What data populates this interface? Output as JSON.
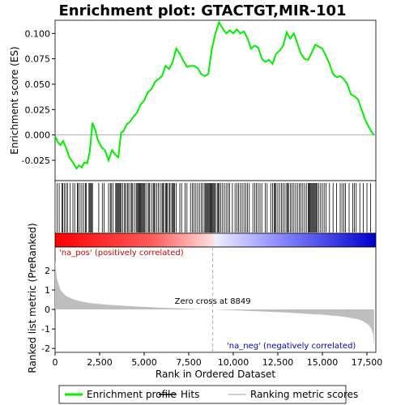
{
  "chart_data": {
    "type": "line",
    "title": "Enrichment plot: GTACTGT,MIR-101",
    "xlabel": "Rank in Ordered Dataset",
    "ylabel_top": "Enrichment score (ES)",
    "ylabel_bottom": "Ranked list metric (PreRanked)",
    "xlim": [
      0,
      18000
    ],
    "x_ticks": [
      0,
      2500,
      5000,
      7500,
      10000,
      12500,
      15000,
      17500
    ],
    "x_tick_labels": [
      "0",
      "2,500",
      "5,000",
      "7,500",
      "10,000",
      "12,500",
      "15,000",
      "17,500"
    ],
    "es_ylim": [
      -0.045,
      0.113
    ],
    "es_ticks": [
      -0.025,
      0.0,
      0.025,
      0.05,
      0.075,
      0.1
    ],
    "es_tick_labels": [
      "-0.025",
      "0.000",
      "0.025",
      "0.050",
      "0.075",
      "0.100"
    ],
    "metric_ylim": [
      -2.2,
      3.2
    ],
    "metric_ticks": [
      -2,
      -1,
      0,
      1,
      2
    ],
    "metric_tick_labels": [
      "-2",
      "-1",
      "0",
      "1",
      "2"
    ],
    "zero_cross": 8849,
    "zero_cross_label": "Zero cross at 8849",
    "pos_label": "'na_pos' (positively correlated)",
    "neg_label": "'na_neg' (negatively correlated)",
    "series": [
      {
        "name": "Enrichment profile",
        "color": "#00ee00",
        "x": [
          0,
          150,
          300,
          450,
          600,
          800,
          1000,
          1200,
          1350,
          1500,
          1650,
          1800,
          1950,
          2100,
          2250,
          2400,
          2600,
          2800,
          3000,
          3200,
          3400,
          3550,
          3700,
          3850,
          4000,
          4200,
          4400,
          4600,
          4800,
          5000,
          5200,
          5400,
          5600,
          5800,
          6000,
          6200,
          6400,
          6600,
          6800,
          7000,
          7200,
          7400,
          7600,
          7800,
          8000,
          8200,
          8400,
          8600,
          8800,
          9000,
          9200,
          9400,
          9600,
          9800,
          10000,
          10200,
          10400,
          10600,
          10800,
          11000,
          11200,
          11400,
          11600,
          11800,
          12000,
          12200,
          12400,
          12600,
          12800,
          13000,
          13200,
          13400,
          13600,
          13800,
          14000,
          14200,
          14400,
          14600,
          14800,
          15000,
          15200,
          15400,
          15600,
          15800,
          16000,
          16200,
          16400,
          16600,
          16800,
          17000,
          17200,
          17400,
          17600,
          17800,
          17900
        ],
        "y": [
          -0.001,
          -0.007,
          -0.01,
          -0.006,
          -0.012,
          -0.022,
          -0.027,
          -0.033,
          -0.03,
          -0.032,
          -0.027,
          -0.028,
          -0.016,
          0.012,
          0.005,
          -0.005,
          -0.012,
          -0.015,
          -0.025,
          -0.015,
          -0.02,
          -0.022,
          0.002,
          0.004,
          0.01,
          0.013,
          0.018,
          0.022,
          0.03,
          0.034,
          0.042,
          0.045,
          0.052,
          0.055,
          0.058,
          0.068,
          0.065,
          0.072,
          0.085,
          0.08,
          0.073,
          0.067,
          0.068,
          0.068,
          0.066,
          0.06,
          0.058,
          0.06,
          0.085,
          0.1,
          0.111,
          0.105,
          0.1,
          0.103,
          0.1,
          0.104,
          0.1,
          0.102,
          0.095,
          0.085,
          0.088,
          0.086,
          0.075,
          0.072,
          0.074,
          0.07,
          0.08,
          0.083,
          0.088,
          0.101,
          0.095,
          0.1,
          0.09,
          0.08,
          0.075,
          0.074,
          0.081,
          0.089,
          0.087,
          0.085,
          0.078,
          0.07,
          0.06,
          0.057,
          0.058,
          0.055,
          0.05,
          0.04,
          0.038,
          0.035,
          0.025,
          0.015,
          0.008,
          0.002,
          0.0
        ]
      },
      {
        "name": "Ranking metric scores",
        "color": "#bebebe",
        "x": [
          0,
          100,
          300,
          600,
          1000,
          1500,
          2000,
          3000,
          4000,
          5000,
          6000,
          7000,
          8000,
          8849,
          10000,
          11000,
          12000,
          13000,
          14000,
          15000,
          15500,
          16000,
          16500,
          17000,
          17300,
          17600,
          17750,
          17850,
          17900
        ],
        "y": [
          2.5,
          1.6,
          1.0,
          0.7,
          0.52,
          0.4,
          0.32,
          0.24,
          0.18,
          0.13,
          0.09,
          0.05,
          0.02,
          0.0,
          -0.04,
          -0.08,
          -0.12,
          -0.16,
          -0.22,
          -0.27,
          -0.31,
          -0.35,
          -0.42,
          -0.5,
          -0.6,
          -0.8,
          -1.0,
          -1.3,
          -1.9
        ]
      }
    ],
    "legend": [
      {
        "label": "Enrichment profile",
        "color": "#00ee00"
      },
      {
        "label": "Hits",
        "color": "#000000"
      },
      {
        "label": "Ranking metric scores",
        "color": "#bebebe"
      }
    ],
    "hits": [
      120,
      230,
      380,
      430,
      520,
      610,
      700,
      850,
      1000,
      1100,
      1250,
      1300,
      1400,
      1500,
      1600,
      1700,
      1750,
      1900,
      1950,
      2000,
      2050,
      2100,
      2450,
      2650,
      2750,
      3000,
      3100,
      3150,
      3250,
      3400,
      3450,
      3500,
      3550,
      3600,
      3650,
      3700,
      3800,
      3900,
      3950,
      4050,
      4100,
      4200,
      4300,
      4350,
      4450,
      4550,
      4600,
      4650,
      4700,
      4750,
      4800,
      4850,
      4900,
      4950,
      5000,
      5050,
      5150,
      5250,
      5300,
      5400,
      5500,
      5550,
      5600,
      5700,
      5800,
      5900,
      6000,
      6050,
      6100,
      6200,
      6250,
      6300,
      6400,
      6450,
      6550,
      6600,
      6650,
      6700,
      6800,
      7000,
      7100,
      7300,
      7400,
      7600,
      7700,
      7800,
      7900,
      8000,
      8100,
      8200,
      8300,
      8400,
      8450,
      8500,
      8550,
      8600,
      8650,
      8700,
      8750,
      8800,
      8850,
      8900,
      8950,
      9000,
      9100,
      9150,
      9200,
      9300,
      9400,
      9500,
      9600,
      9700,
      9800,
      9950,
      10100,
      10200,
      10300,
      10400,
      10500,
      10600,
      10700,
      10800,
      10900,
      11100,
      11200,
      11300,
      11400,
      11500,
      11600,
      11800,
      11900,
      12100,
      12200,
      12300,
      12350,
      12400,
      12500,
      12600,
      12700,
      12800,
      12900,
      13000,
      13050,
      13100,
      13200,
      13300,
      13400,
      13500,
      13600,
      13700,
      13800,
      13900,
      14000,
      14100,
      14200,
      14250,
      14300,
      14350,
      14400,
      14450,
      14500,
      14550,
      14600,
      14650,
      14700,
      14800,
      14900,
      15000,
      15100,
      15200,
      15400,
      15600,
      15800,
      16000,
      16100,
      16200,
      16300,
      16500,
      16700,
      16800,
      16900,
      17100,
      17300,
      17500,
      17700
    ]
  }
}
